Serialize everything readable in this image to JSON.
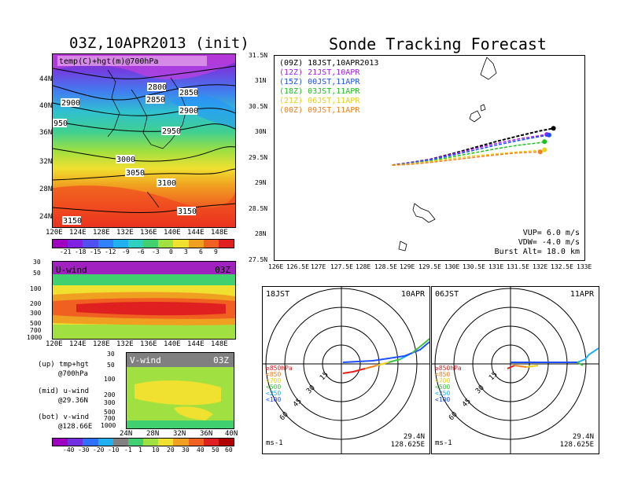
{
  "left": {
    "title": "03Z,10APR2013 (init)",
    "map_label": "temp(C)+hgt(m)@700hPa",
    "lat_ticks": [
      "44N",
      "40N",
      "36N",
      "32N",
      "28N",
      "24N"
    ],
    "lon_ticks": [
      "120E",
      "124E",
      "128E",
      "132E",
      "136E",
      "140E",
      "144E",
      "148E"
    ],
    "contours": [
      "2800",
      "2850",
      "2900",
      "2950",
      "3000",
      "3050",
      "3100",
      "3150",
      "3150",
      "950",
      "2900",
      "2850"
    ],
    "temp_colorbar": [
      "-21",
      "-18",
      "-15",
      "-12",
      "-9",
      "-6",
      "-3",
      "0",
      "3",
      "6",
      "9"
    ],
    "uwind": {
      "label": "U-wind",
      "time": "03Z",
      "p_ticks": [
        "30",
        "50",
        "100",
        "200",
        "300",
        "500",
        "700",
        "1000"
      ]
    },
    "vwind": {
      "label": "V-wind",
      "time": "03Z",
      "p_ticks": [
        "30",
        "50",
        "100",
        "200",
        "300",
        "500",
        "700",
        "1000"
      ],
      "lat_ticks": [
        "24N",
        "28N",
        "32N",
        "36N",
        "40N"
      ]
    },
    "legend_text": [
      "(up) tmp+hgt",
      "@700hPa",
      "(mid) u-wind",
      "@29.36N",
      "(bot) v-wind",
      "@128.66E"
    ],
    "wind_colorbar": [
      "-40",
      "-30",
      "-20",
      "-10",
      "-1",
      "1",
      "10",
      "20",
      "30",
      "40",
      "50",
      "60"
    ]
  },
  "right": {
    "title": "Sonde Tracking Forecast",
    "lat_ticks": [
      "31.5N",
      "31N",
      "30.5N",
      "30N",
      "29.5N",
      "29N",
      "28.5N",
      "28N",
      "27.5N"
    ],
    "lon_ticks": [
      "126E",
      "126.5E",
      "127E",
      "127.5E",
      "128E",
      "128.5E",
      "129E",
      "129.5E",
      "130E",
      "130.5E",
      "131E",
      "131.5E",
      "132E",
      "132.5E",
      "133E"
    ],
    "runs": [
      {
        "text": "(09Z)  18JST,10APR2013",
        "color": "#000000"
      },
      {
        "text": "(12Z)  21JST,10APR",
        "color": "#a020f0"
      },
      {
        "text": "(15Z)  00JST,11APR",
        "color": "#1e50ff"
      },
      {
        "text": "(18Z)  03JST,11APR",
        "color": "#20c020"
      },
      {
        "text": "(21Z)  06JST,11APR",
        "color": "#e8d020"
      },
      {
        "text": "(00Z)  09JST,11APR",
        "color": "#f08020"
      }
    ],
    "params": [
      "VUP=  6.0 m/s",
      "VDW= -4.0 m/s",
      "Burst Alt= 18.0 km"
    ],
    "polar": [
      {
        "jst": "18JST",
        "date": "10APR",
        "lat": "29.4N",
        "lon": "128.625E",
        "unit": "ms-1",
        "rings": [
          "15",
          "30",
          "45",
          "60"
        ],
        "levels": [
          "≥850hPa",
          "<850",
          "<700",
          "<500",
          "<250",
          "<100"
        ]
      },
      {
        "jst": "06JST",
        "date": "11APR",
        "lat": "29.4N",
        "lon": "128.625E",
        "unit": "ms-1",
        "rings": [
          "15",
          "30",
          "45",
          "60"
        ],
        "levels": [
          "≥850hPa",
          "<850",
          "<700",
          "<500",
          "<250",
          "<100"
        ]
      }
    ]
  },
  "chart_data": [
    {
      "type": "line",
      "title": "Sonde Tracking Forecast",
      "xlim": [
        126,
        133
      ],
      "ylim": [
        27.5,
        31.5
      ],
      "series": [
        {
          "name": "(09Z) 18JST,10APR2013",
          "x": [
            128.66,
            129.0,
            129.5,
            130.0,
            130.5,
            131.0,
            131.5,
            132.0,
            132.3
          ],
          "y": [
            29.36,
            29.4,
            29.47,
            29.58,
            29.7,
            29.82,
            29.93,
            30.03,
            30.08
          ]
        },
        {
          "name": "(12Z) 21JST,10APR",
          "x": [
            128.66,
            129.0,
            129.5,
            130.0,
            130.5,
            131.0,
            131.5,
            132.0,
            132.15
          ],
          "y": [
            29.36,
            29.4,
            29.47,
            29.57,
            29.68,
            29.78,
            29.87,
            29.94,
            29.96
          ]
        },
        {
          "name": "(15Z) 00JST,11APR",
          "x": [
            128.66,
            129.0,
            129.5,
            130.0,
            130.5,
            131.0,
            131.5,
            132.0,
            132.2
          ],
          "y": [
            29.36,
            29.39,
            29.46,
            29.55,
            29.65,
            29.75,
            29.84,
            29.92,
            29.95
          ]
        },
        {
          "name": "(18Z) 03JST,11APR",
          "x": [
            128.66,
            129.0,
            129.5,
            130.0,
            130.5,
            131.0,
            131.5,
            132.0,
            132.1
          ],
          "y": [
            29.36,
            29.38,
            29.44,
            29.52,
            29.6,
            29.68,
            29.75,
            29.8,
            29.82
          ]
        },
        {
          "name": "(21Z) 06JST,11APR",
          "x": [
            128.66,
            129.0,
            129.5,
            130.0,
            130.5,
            131.0,
            131.5,
            132.0,
            132.1
          ],
          "y": [
            29.36,
            29.38,
            29.43,
            29.49,
            29.54,
            29.58,
            29.62,
            29.65,
            29.66
          ]
        },
        {
          "name": "(00Z) 09JST,11APR",
          "x": [
            128.66,
            129.0,
            129.5,
            130.0,
            130.5,
            131.0,
            131.5,
            132.0
          ],
          "y": [
            29.36,
            29.37,
            29.41,
            29.46,
            29.51,
            29.56,
            29.6,
            29.62
          ]
        }
      ]
    }
  ]
}
